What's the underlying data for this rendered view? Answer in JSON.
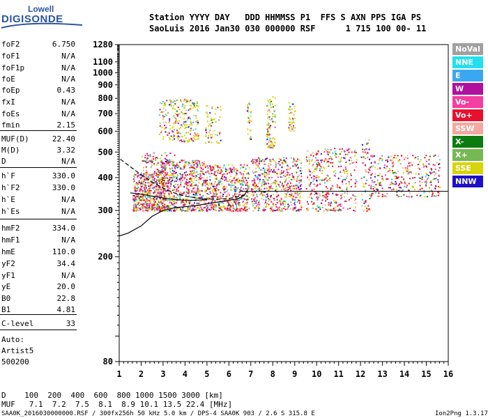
{
  "logo": {
    "top": "Lowell",
    "main": "DIGISONDE"
  },
  "header": {
    "line1": "Station YYYY DAY   DDD HHMMSS P1  FFS S AXN PPS IGA PS",
    "line2": "SaoLuis 2016 Jan30 030 000000 RSF      1 715 100 00- 11"
  },
  "params": [
    {
      "k": "foF2",
      "v": "6.750"
    },
    {
      "k": "foF1",
      "v": "N/A"
    },
    {
      "k": "foF1p",
      "v": "N/A"
    },
    {
      "k": "foE",
      "v": "N/A"
    },
    {
      "k": "foEp",
      "v": "0.43"
    },
    {
      "k": "fxI",
      "v": "N/A"
    },
    {
      "k": "foEs",
      "v": "N/A"
    },
    {
      "k": "fmin",
      "v": "2.15"
    },
    {
      "k": "MUF(D)",
      "v": "22.40"
    },
    {
      "k": "M(D)",
      "v": "3.32"
    },
    {
      "k": "D",
      "v": "N/A"
    },
    {
      "k": "h`F",
      "v": "330.0"
    },
    {
      "k": "h`F2",
      "v": "330.0"
    },
    {
      "k": "h`E",
      "v": "N/A"
    },
    {
      "k": "h`Es",
      "v": "N/A"
    },
    {
      "k": "hmF2",
      "v": "334.0"
    },
    {
      "k": "hmF1",
      "v": "N/A"
    },
    {
      "k": "hmE",
      "v": "110.0"
    },
    {
      "k": "yF2",
      "v": "34.4"
    },
    {
      "k": "yF1",
      "v": "N/A"
    },
    {
      "k": "yE",
      "v": "20.0"
    },
    {
      "k": "B0",
      "v": "22.8"
    },
    {
      "k": "B1",
      "v": "4.81"
    },
    {
      "k": "C-level",
      "v": "33"
    }
  ],
  "notes": {
    "auto": "Auto:",
    "artist": "Artist5",
    "code": "500200"
  },
  "legend": [
    {
      "label": "NoVal",
      "color": "#a0a0a0"
    },
    {
      "label": "NNE",
      "color": "#22e0f0"
    },
    {
      "label": "E",
      "color": "#3aa8f0"
    },
    {
      "label": "W",
      "color": "#b0109e"
    },
    {
      "label": "Vo-",
      "color": "#f23fa0"
    },
    {
      "label": "Vo+",
      "color": "#e8102e"
    },
    {
      "label": "SSW",
      "color": "#f4a8a0"
    },
    {
      "label": "X-",
      "color": "#0c7c10"
    },
    {
      "label": "X+",
      "color": "#76b852"
    },
    {
      "label": "SSE",
      "color": "#d8d40a"
    },
    {
      "label": "NNW",
      "color": "#1c10c8"
    }
  ],
  "bottom": {
    "d_row": "D    100  200  400  600  800 1000 1500 3000 [km]",
    "muf_row": "MUF   7.1  7.2  7.5  8.1  8.9 10.1 13.5 22.4 [MHz]"
  },
  "footer": {
    "left": "SAA0K_2016030000000.RSF / 300fx256h 50 kHz 5.0 km / DPS-4 SAA0K 903 / 2.6 S 315.8 E",
    "right": "Ion2Png 1.3.17"
  },
  "chart_data": {
    "type": "scatter",
    "xlim": [
      1,
      16
    ],
    "ylim": [
      80,
      1280
    ],
    "x_ticks": [
      1,
      2,
      3,
      4,
      5,
      6,
      7,
      8,
      9,
      10,
      11,
      12,
      13,
      14,
      15,
      16
    ],
    "x_tick_labels": [
      "1",
      "2",
      "3",
      "4",
      "5",
      "6",
      "7",
      "8",
      "9",
      "10",
      "11",
      "12",
      "13",
      "14",
      "15",
      "16"
    ],
    "y_ticks": [
      80,
      100,
      200,
      300,
      400,
      500,
      600,
      700,
      800,
      900,
      1000,
      1100,
      1280
    ],
    "y_tick_labels": [
      "80",
      "",
      "200",
      "300",
      "400",
      "500",
      "600",
      "700",
      "800",
      "900",
      "1000",
      "1100",
      "1280"
    ],
    "y_scale": "log",
    "grid": false,
    "legend_position": "right",
    "echo_clusters": [
      {
        "x": [
          1.6,
          2.9
        ],
        "y": [
          300,
          420
        ],
        "density": 380
      },
      {
        "x": [
          2.0,
          3.5
        ],
        "y": [
          300,
          500
        ],
        "density": 260
      },
      {
        "x": [
          2.8,
          4.9
        ],
        "y": [
          300,
          470
        ],
        "density": 600
      },
      {
        "x": [
          2.8,
          4.6
        ],
        "y": [
          550,
          800
        ],
        "density": 240
      },
      {
        "x": [
          4.9,
          6.9
        ],
        "y": [
          300,
          450
        ],
        "density": 520
      },
      {
        "x": [
          4.9,
          5.6
        ],
        "y": [
          540,
          760
        ],
        "density": 60
      },
      {
        "x": [
          6.8,
          7.0
        ],
        "y": [
          560,
          780
        ],
        "density": 30
      },
      {
        "x": [
          7.0,
          9.3
        ],
        "y": [
          300,
          480
        ],
        "density": 520
      },
      {
        "x": [
          7.7,
          8.1
        ],
        "y": [
          520,
          820
        ],
        "density": 90
      },
      {
        "x": [
          9.5,
          11.8
        ],
        "y": [
          300,
          520
        ],
        "density": 360
      },
      {
        "x": [
          12.0,
          12.4
        ],
        "y": [
          300,
          560
        ],
        "density": 60
      },
      {
        "x": [
          12.4,
          15.6
        ],
        "y": [
          340,
          490
        ],
        "density": 330
      },
      {
        "x": [
          8.7,
          9.0
        ],
        "y": [
          600,
          800
        ],
        "density": 40
      }
    ],
    "trace_extraordinary": [
      [
        1.05,
        470
      ],
      [
        1.5,
        440
      ],
      [
        2.0,
        410
      ],
      [
        2.5,
        385
      ],
      [
        3.0,
        365
      ],
      [
        3.5,
        350
      ],
      [
        4.0,
        340
      ],
      [
        4.5,
        335
      ],
      [
        5.0,
        332
      ],
      [
        5.5,
        331
      ],
      [
        6.0,
        333
      ],
      [
        6.5,
        340
      ],
      [
        6.8,
        345
      ]
    ],
    "trace_profile": [
      [
        1.0,
        240
      ],
      [
        1.4,
        246
      ],
      [
        2.0,
        262
      ],
      [
        2.5,
        285
      ],
      [
        3.0,
        300
      ],
      [
        3.5,
        307
      ],
      [
        4.0,
        310
      ],
      [
        4.5,
        313
      ],
      [
        5.0,
        318
      ],
      [
        5.5,
        323
      ],
      [
        6.0,
        328
      ],
      [
        6.4,
        332
      ],
      [
        6.7,
        342
      ],
      [
        6.85,
        360
      ]
    ],
    "trace_mid": [
      [
        1.5,
        350
      ],
      [
        2.0,
        346
      ],
      [
        2.5,
        340
      ],
      [
        3.0,
        335
      ],
      [
        3.5,
        330
      ],
      [
        4.0,
        328
      ],
      [
        4.5,
        328
      ],
      [
        5.0,
        330
      ]
    ],
    "muf_line": {
      "x": [
        6.5,
        16.0
      ],
      "y": 355
    }
  }
}
